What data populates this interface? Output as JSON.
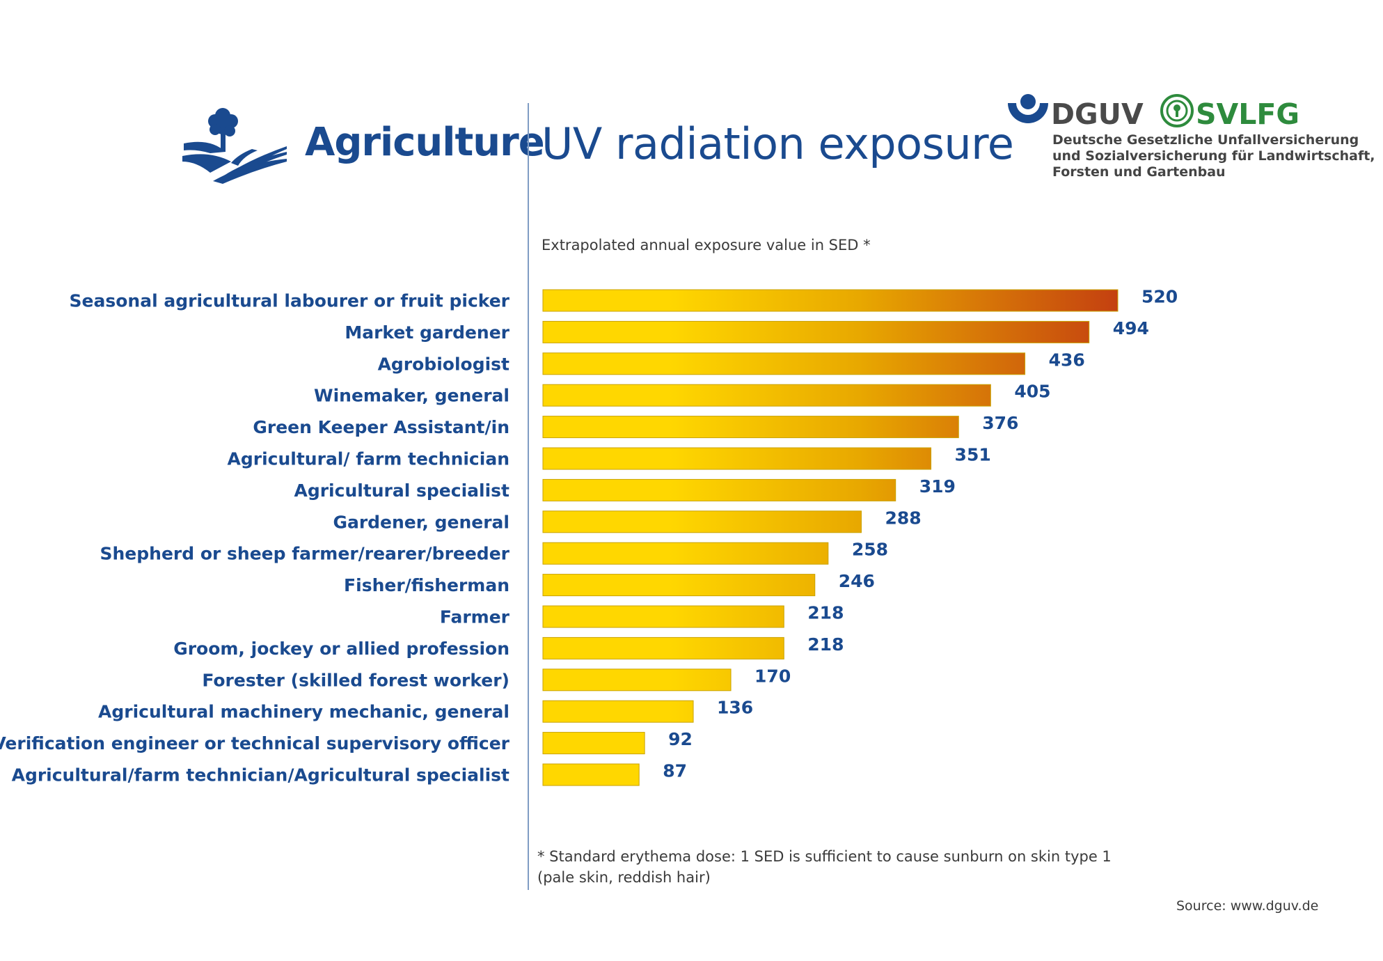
{
  "header": {
    "section_title": "Agriculture",
    "title": "UV radiation exposure",
    "logo": {
      "dguv": "DGUV",
      "svlfg": "SVLFG",
      "org_lines": [
        "Deutsche Gesetzliche Unfallversicherung",
        "und Sozialversicherung für Landwirtschaft,",
        "Forsten und Gartenbau"
      ]
    }
  },
  "footnote": {
    "line1": "* Standard erythema dose: 1 SED is sufficient to cause sunburn on skin type 1",
    "line2": "(pale skin, reddish hair)"
  },
  "source": "Source: www.dguv.de",
  "colors": {
    "title_blue": "#1a4a8f",
    "bar_start": "#ffd700",
    "bar_end": "#c44010",
    "bar_border": "#c9a200"
  },
  "icons": [
    "farm-field-tree-icon",
    "dguv-emblem-icon",
    "svlfg-emblem-icon"
  ],
  "chart_data": {
    "type": "bar",
    "orientation": "horizontal",
    "title": "Extrapolated annual exposure value in SED *",
    "categories": [
      "Seasonal agricultural labourer or fruit picker",
      "Market gardener",
      "Agrobiologist",
      "Winemaker, general",
      "Green Keeper Assistant/in",
      "Agricultural/ farm technician",
      "Agricultural specialist",
      "Gardener, general",
      "Shepherd or sheep farmer/rearer/breeder",
      "Fisher/fisherman",
      "Farmer",
      "Groom, jockey or allied profession",
      "Forester (skilled forest worker)",
      "Agricultural machinery mechanic, general",
      "Verification engineer or technical supervisory officer",
      "Agricultural/farm technician/Agricultural specialist"
    ],
    "values": [
      520,
      494,
      436,
      405,
      376,
      351,
      319,
      288,
      258,
      246,
      218,
      218,
      170,
      136,
      92,
      87
    ],
    "xlim": [
      0,
      520
    ],
    "grid": false,
    "legend": "none",
    "data_labels": true
  }
}
